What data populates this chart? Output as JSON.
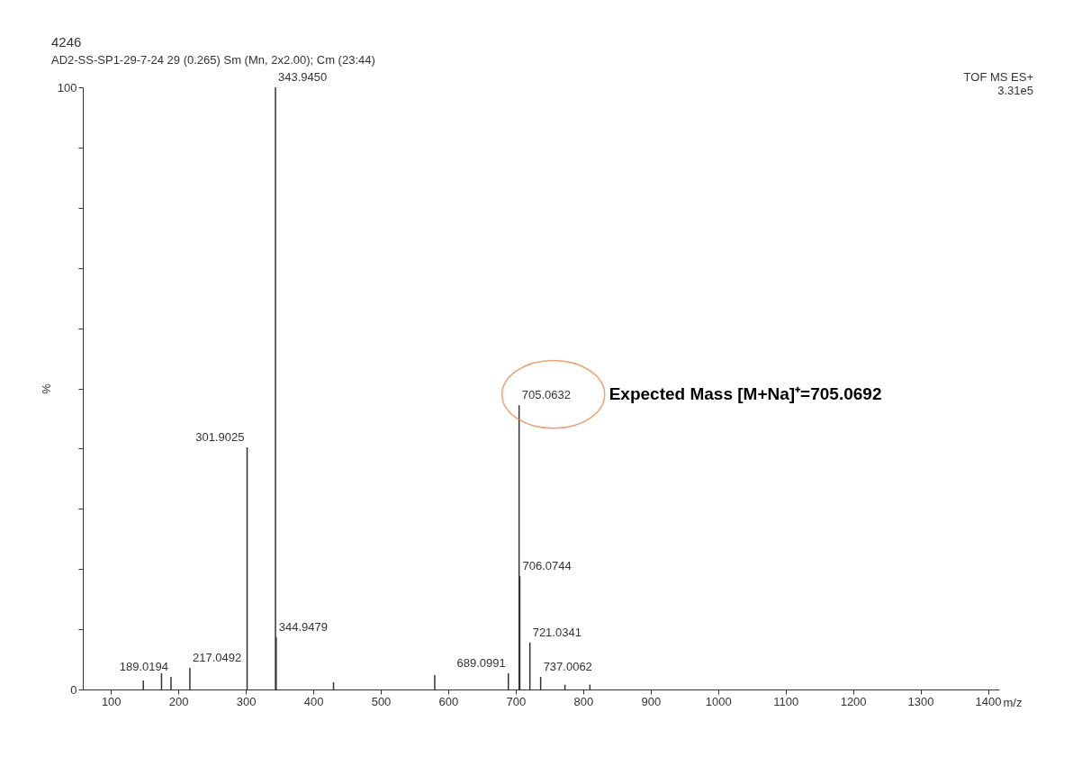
{
  "chart_data": {
    "type": "bar",
    "title": "4246",
    "subtitle": "AD2-SS-SP1-29-7-24  29 (0.265) Sm (Mn, 2x2.00); Cm (23:44)",
    "xlabel": "m/z",
    "ylabel": "%",
    "x": [
      148,
      175,
      189.0194,
      217.0492,
      301.9025,
      343.945,
      344.9479,
      430,
      580,
      689.0991,
      705.0632,
      706.0744,
      721.0341,
      737.0062,
      773,
      810
    ],
    "values": [
      1.5,
      2.7,
      2.1,
      3.6,
      40.2,
      100,
      8.7,
      1.2,
      2.4,
      2.7,
      47.2,
      18.8,
      7.8,
      2.1,
      0.8,
      0.8
    ],
    "color": "#333333",
    "xlim": [
      65,
      1410
    ],
    "xticks": [
      100,
      200,
      300,
      400,
      500,
      600,
      700,
      800,
      900,
      1000,
      1100,
      1200,
      1300,
      1400
    ],
    "ylim": [
      0,
      100
    ],
    "yticks": [
      0,
      {
        "value": 10,
        "label": null
      },
      {
        "value": 20,
        "label": null
      },
      {
        "value": 30,
        "label": null
      },
      {
        "value": 40,
        "label": null
      },
      {
        "value": 50,
        "label": null
      },
      {
        "value": 60,
        "label": null
      },
      {
        "value": 70,
        "label": null
      },
      {
        "value": 80,
        "label": null
      },
      {
        "value": 90,
        "label": null
      },
      100
    ],
    "grid": false,
    "annotations": [
      {
        "text": "705.0632",
        "x": 705.0632,
        "y": 47.2
      },
      "Expected Mass [M+Na]⁺=705.0692",
      {
        "text": "343.9450",
        "x": 343.945,
        "y": 100
      },
      {
        "text": "301.9025",
        "x": 301.9025,
        "y": 40.2
      },
      {
        "text": "344.9479",
        "x": 344.9479,
        "y": 8.7
      },
      {
        "text": "189.0194",
        "x": 189.0194,
        "y": 2.1
      },
      {
        "text": "217.0492",
        "x": 217.0492,
        "y": 3.6
      },
      {
        "text": "689.0991",
        "x": 689.0991,
        "y": 2.7
      },
      {
        "text": "706.0744",
        "x": 706.0744,
        "y": 18.8
      },
      {
        "text": "721.0341",
        "x": 721.0341,
        "y": 7.8
      },
      {
        "text": "737.0062",
        "x": 737.0062,
        "y": 2.1
      },
      "TOF MS ES+",
      "3.31e5"
    ]
  }
}
